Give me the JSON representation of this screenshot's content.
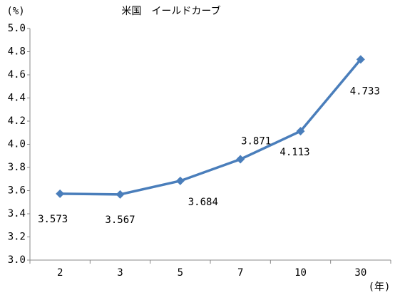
{
  "chart_data": {
    "type": "line",
    "title": "米国　イールドカーブ",
    "y_label": "(%)",
    "x_label": "(年)",
    "categories": [
      "2",
      "3",
      "5",
      "7",
      "10",
      "30"
    ],
    "series": [
      {
        "name": "米国",
        "color": "#4a7ebb",
        "values": [
          3.573,
          3.567,
          3.684,
          3.871,
          4.113,
          4.733
        ]
      }
    ],
    "ylim": [
      3.0,
      5.0
    ],
    "yticks": [
      {
        "value": 3,
        "label": "3.0"
      },
      3.2,
      3.4,
      3.6,
      3.8,
      {
        "value": 4,
        "label": "4.0"
      },
      4.2,
      4.4,
      4.6,
      4.8,
      {
        "value": 5,
        "label": "5.0"
      }
    ],
    "grid": false
  }
}
